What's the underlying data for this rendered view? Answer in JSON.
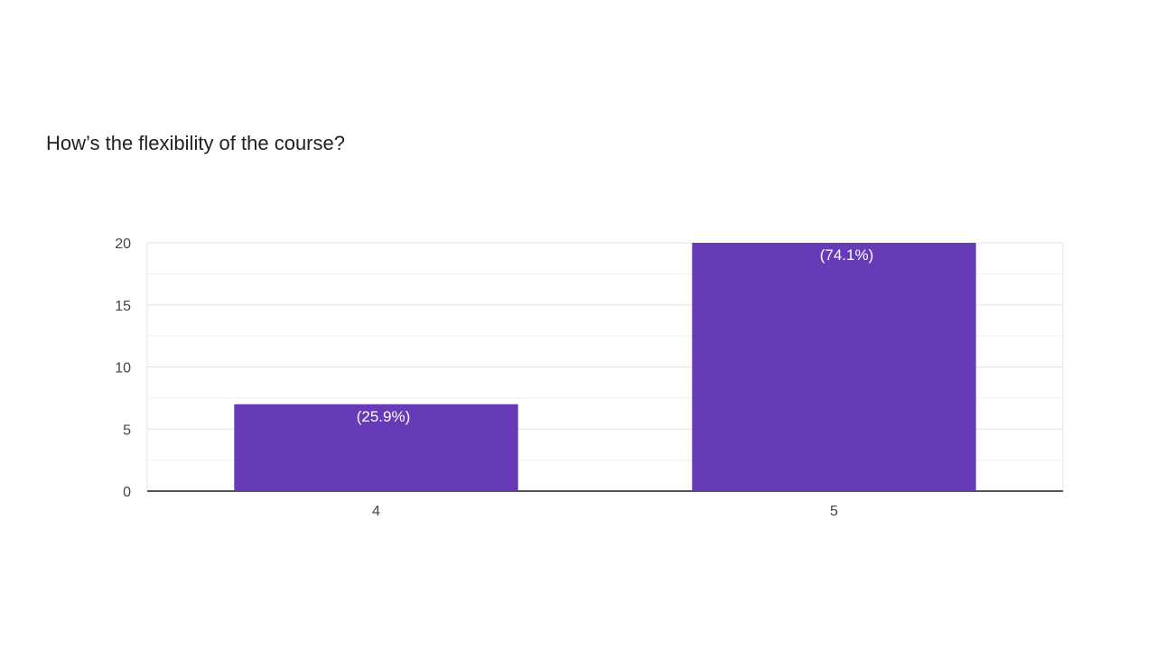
{
  "question": {
    "title": "How’s the flexibility of the course?"
  },
  "chart_data": {
    "type": "bar",
    "title": "How’s the flexibility of the course?",
    "categories": [
      "4",
      "5"
    ],
    "values": [
      7,
      20
    ],
    "data_labels": [
      "(25.9%)",
      "(74.1%)"
    ],
    "ylim": [
      0,
      20
    ],
    "yticks": [
      0,
      5,
      10,
      15,
      20
    ],
    "xlabel": "",
    "ylabel": "",
    "grid": true,
    "legend": "none",
    "bar_color": "#673ab7"
  }
}
